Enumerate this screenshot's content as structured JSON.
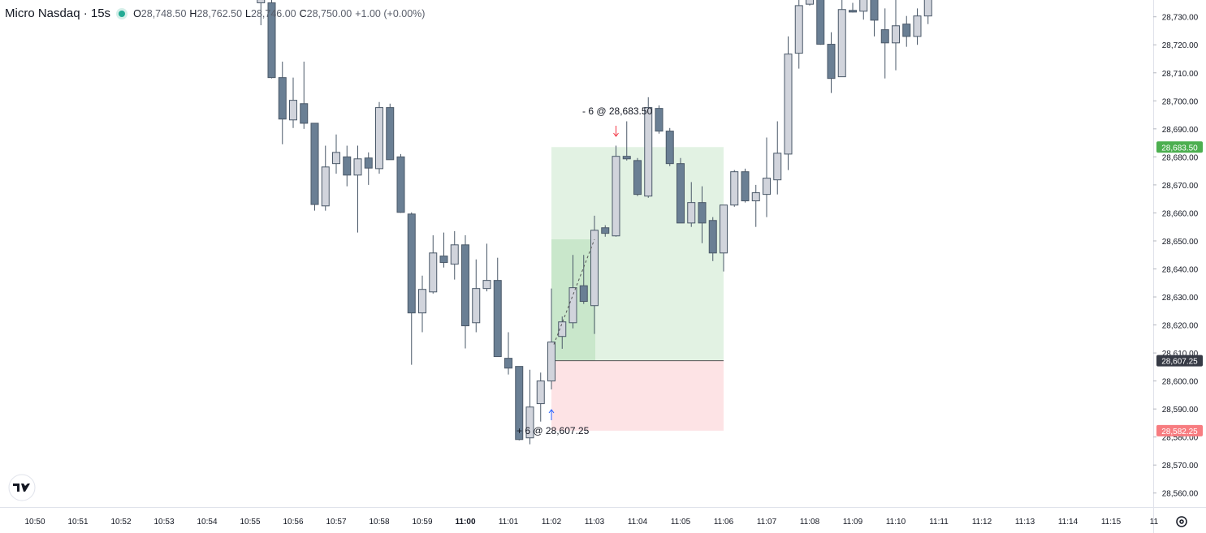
{
  "header": {
    "symbol": "Micro Nasdaq · 15s",
    "ohlc": [
      {
        "label": "O",
        "value": "28,748.50"
      },
      {
        "label": "H",
        "value": "28,762.50"
      },
      {
        "label": "L",
        "value": "28,746.00"
      },
      {
        "label": "C",
        "value": "28,750.00"
      }
    ],
    "change": "+1.00 (+0.00%)"
  },
  "chart_data": {
    "type": "candlestick",
    "categories": [
      "10:50",
      null,
      null,
      null,
      "10:51",
      null,
      null,
      null,
      "10:52",
      null,
      null,
      null,
      "10:53",
      null,
      null,
      null,
      "10:54",
      null,
      null,
      null,
      "10:55",
      null,
      null,
      null,
      "10:56",
      null,
      null,
      null,
      "10:57",
      null,
      null,
      null,
      "10:58",
      null,
      null,
      null,
      "10:59",
      null,
      null,
      null,
      "11:00",
      null,
      null,
      null,
      "11:01",
      null,
      null,
      null,
      "11:02",
      null,
      null,
      null,
      "11:03",
      null,
      null,
      null,
      "11:04",
      null,
      null,
      null,
      "11:05",
      null,
      null,
      null,
      "11:06",
      null,
      null,
      null,
      "11:07",
      null,
      null,
      null,
      "11:08",
      null,
      null,
      null,
      "11:09",
      null,
      null,
      null,
      "11:10",
      null,
      null,
      null,
      "11:11",
      null,
      null,
      null,
      "11:12",
      null,
      null,
      null,
      "11:13",
      null,
      null,
      null,
      "11:14",
      null,
      null,
      null,
      "11:15",
      null,
      null,
      null,
      "11"
    ],
    "open": [
      null,
      null,
      null,
      null,
      null,
      null,
      null,
      null,
      null,
      null,
      null,
      null,
      null,
      null,
      null,
      null,
      null,
      null,
      null,
      null,
      null,
      28735,
      28735,
      28708.3,
      28693.2,
      28699,
      28692,
      28662.5,
      28677.6,
      28680,
      28673.5,
      28679.6,
      28675.8,
      28697.6,
      28680,
      28659.6,
      28624.3,
      28631.8,
      28644.6,
      28641.7,
      28648.6,
      28620.8,
      28633,
      28635.9,
      28608.1,
      28605.2,
      28579.7,
      28591.9,
      28600,
      28615.9,
      28620.8,
      28634,
      28626.9,
      28654.7,
      28651.8,
      28680.2,
      28678.7,
      28666,
      28697.3,
      28689.2,
      28677.6,
      28656.4,
      28663.7,
      28657.3,
      28645.7,
      28662.8,
      28674.7,
      28664.3,
      28666.6,
      28671.8,
      28681,
      28717,
      28734.5,
      28740,
      28720.2,
      28708.6,
      28732.3,
      28732,
      28738,
      28725.4,
      28720.7,
      28727.4,
      28723,
      28730.3,
      null,
      null,
      null,
      null,
      null,
      null,
      null,
      null,
      null,
      null,
      null,
      null,
      null,
      null,
      null,
      null,
      null,
      null,
      null,
      null,
      null
    ],
    "high": [
      null,
      null,
      null,
      null,
      null,
      null,
      null,
      null,
      null,
      null,
      null,
      null,
      null,
      null,
      null,
      null,
      null,
      null,
      null,
      null,
      null,
      28745,
      28738,
      28714,
      28708.3,
      28714,
      28692,
      28684,
      28688,
      28684,
      28684,
      28681.6,
      28699.6,
      28699,
      28681,
      28660.2,
      28637.6,
      28652,
      28653,
      28653.5,
      28652,
      28643.4,
      28649,
      28644,
      28617.4,
      28605.2,
      28604,
      28603,
      28633,
      28623,
      28645,
      28645,
      28659,
      28655.6,
      28684,
      28692.7,
      28679.6,
      28701.3,
      28698.4,
      28690.3,
      28679.6,
      28671,
      28669.5,
      28658.5,
      28662.8,
      28675.3,
      28675.8,
      28670,
      28686.9,
      28692.7,
      28723,
      28736,
      28740,
      28742,
      28724.5,
      28738,
      28735,
      28742,
      28742,
      28733,
      28737,
      28730.3,
      28733,
      28742,
      null,
      null,
      null,
      null,
      null,
      null,
      null,
      null,
      null,
      null,
      null,
      null,
      null,
      null,
      null,
      null,
      null,
      null,
      null,
      null,
      null
    ],
    "low": [
      null,
      null,
      null,
      null,
      null,
      null,
      null,
      null,
      null,
      null,
      null,
      null,
      null,
      null,
      null,
      null,
      null,
      null,
      null,
      null,
      null,
      28727,
      28708,
      28684.5,
      28690.3,
      28690,
      28660.8,
      28660.8,
      28674,
      28669.5,
      28653,
      28670,
      28674,
      28679,
      28660,
      28605.8,
      28617.4,
      28631.2,
      28640.5,
      28636.2,
      28611.6,
      28617.4,
      28632,
      28608.7,
      28602.3,
      28578.8,
      28577.4,
      28585.5,
      28597,
      28611.5,
      28618.8,
      28627.5,
      28616.8,
      28651.5,
      28651.5,
      28678.7,
      28666,
      28665.4,
      28688.3,
      28676.7,
      28656.4,
      28655,
      28649.2,
      28642.8,
      28639.1,
      28662.2,
      28663.7,
      28655,
      28658.5,
      28666.6,
      28675.3,
      28711.5,
      28734,
      28720,
      28702.8,
      28708.6,
      28731.5,
      28729,
      28723,
      28708,
      28710.9,
      28719.3,
      28720,
      28727.4,
      null,
      null,
      null,
      null,
      null,
      null,
      null,
      null,
      null,
      null,
      null,
      null,
      null,
      null,
      null,
      null,
      null,
      null,
      null,
      null,
      null
    ],
    "close": [
      null,
      null,
      null,
      null,
      null,
      null,
      null,
      null,
      null,
      null,
      null,
      null,
      null,
      null,
      null,
      null,
      null,
      null,
      null,
      null,
      null,
      28740,
      28708.3,
      28693.5,
      28700.2,
      28692,
      28663,
      28676.4,
      28681.6,
      28673.5,
      28679.3,
      28676,
      28697.6,
      28679,
      28660.2,
      28624.3,
      28632.7,
      28645.7,
      28642.3,
      28648.6,
      28619.7,
      28633,
      28635.9,
      28608.7,
      28604.6,
      28579.1,
      28590.7,
      28600,
      28613.9,
      28621.1,
      28633.3,
      28628.4,
      28653.8,
      28652.7,
      28680.2,
      28679.3,
      28666.6,
      28697.6,
      28689.2,
      28677.6,
      28656.4,
      28663.7,
      28656.4,
      28645.7,
      28662.8,
      28674.7,
      28664.3,
      28667.2,
      28672.4,
      28681.3,
      28716.7,
      28734,
      28738,
      28720.2,
      28708,
      28732.6,
      28731.7,
      28738,
      28728.8,
      28720.7,
      28726.8,
      28723,
      28730.3,
      28738,
      null,
      null,
      null,
      null,
      null,
      null,
      null,
      null,
      null,
      null,
      null,
      null,
      null,
      null,
      null,
      null,
      null,
      null,
      null,
      null,
      null
    ],
    "up_color": "#d1d4dc",
    "down_color": "#6a7f94",
    "wick_color": "#4a5868",
    "ylim": [
      28555,
      28736
    ],
    "yticks": [
      {
        "value": 28560,
        "label": "28,560.00"
      },
      {
        "value": 28570,
        "label": "28,570.00"
      },
      {
        "value": 28580,
        "label": "28,580.00"
      },
      {
        "value": 28590,
        "label": "28,590.00"
      },
      {
        "value": 28600,
        "label": "28,600.00"
      },
      {
        "value": 28610,
        "label": "28,610.00"
      },
      {
        "value": 28620,
        "label": "28,620.00"
      },
      {
        "value": 28630,
        "label": "28,630.00"
      },
      {
        "value": 28640,
        "label": "28,640.00"
      },
      {
        "value": 28650,
        "label": "28,650.00"
      },
      {
        "value": 28660,
        "label": "28,660.00"
      },
      {
        "value": 28670,
        "label": "28,670.00"
      },
      {
        "value": 28680,
        "label": "28,680.00"
      },
      {
        "value": 28690,
        "label": "28,690.00"
      },
      {
        "value": 28700,
        "label": "28,700.00"
      },
      {
        "value": 28710,
        "label": "28,710.00"
      },
      {
        "value": 28720,
        "label": "28,720.00"
      },
      {
        "value": 28730,
        "label": "28,730.00"
      }
    ],
    "price_labels": [
      {
        "value": 28683.5,
        "label": "28,683.50",
        "color": "#4caf50"
      },
      {
        "value": 28607.25,
        "label": "28,607.25",
        "color": "#363a45"
      },
      {
        "value": 28582.25,
        "label": "28,582.25",
        "color": "#f77c80"
      }
    ],
    "trades": [
      {
        "label": "+ 6 @ 28,607.25",
        "side": "buy"
      },
      {
        "label": "- 6 @ 28,683.50",
        "side": "sell"
      }
    ]
  }
}
